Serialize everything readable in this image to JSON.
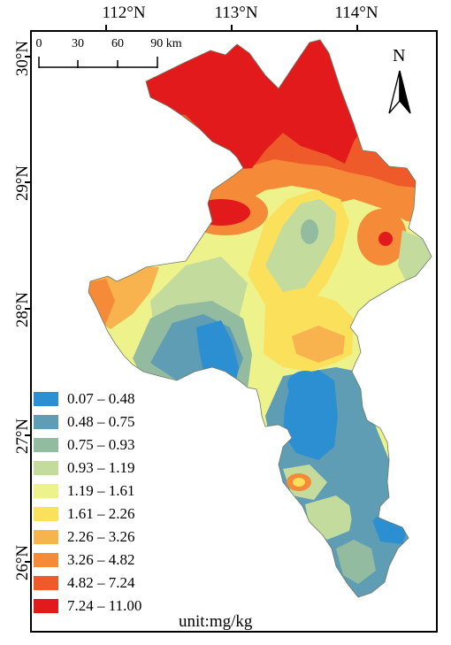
{
  "axes": {
    "longitude_labels": [
      "112°N",
      "113°N",
      "114°N"
    ],
    "latitude_labels": [
      "30°N",
      "29°N",
      "28°N",
      "27°N",
      "26°N"
    ]
  },
  "scale_bar": {
    "labels": [
      "0",
      "30",
      "60",
      "90 km"
    ]
  },
  "north_arrow": {
    "label": "N",
    "icon": "north-arrow-icon"
  },
  "legend": {
    "unit": "unit:mg/kg",
    "items": [
      {
        "label": "0.07 – 0.48",
        "color": "#2b8fd1"
      },
      {
        "label": "0.48 – 0.75",
        "color": "#5f9db4"
      },
      {
        "label": "0.75 – 0.93",
        "color": "#93bba0"
      },
      {
        "label": "0.93 – 1.19",
        "color": "#c3dc9e"
      },
      {
        "label": "1.19 – 1.61",
        "color": "#eef28a"
      },
      {
        "label": "1.61 – 2.26",
        "color": "#fbe05c"
      },
      {
        "label": "2.26 – 3.26",
        "color": "#f8b24e"
      },
      {
        "label": "3.26 – 4.82",
        "color": "#f58a38"
      },
      {
        "label": "4.82 – 7.24",
        "color": "#ee5a2a"
      },
      {
        "label": "7.24 – 11.00",
        "color": "#e31a1c"
      }
    ]
  }
}
